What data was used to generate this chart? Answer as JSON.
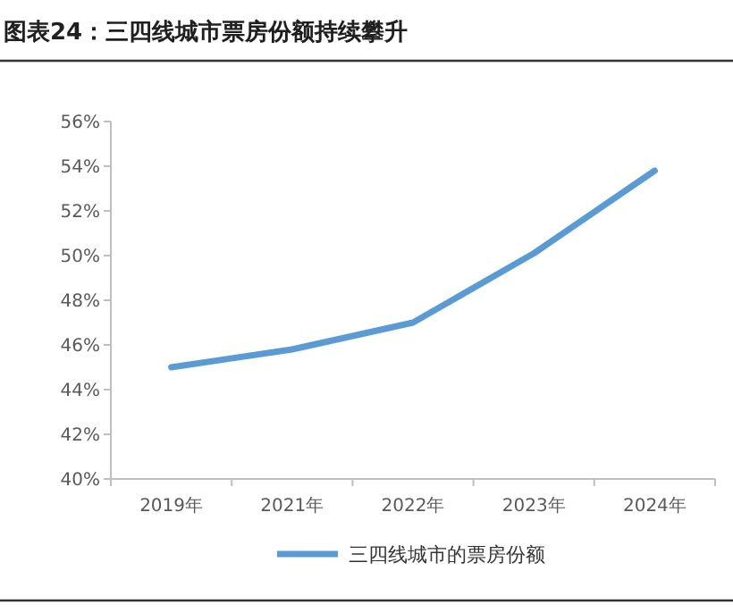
{
  "chart_data": {
    "type": "line",
    "title": "图表24：三四线城市票房份额持续攀升",
    "categories": [
      "2019年",
      "2021年",
      "2022年",
      "2023年",
      "2024年"
    ],
    "series": [
      {
        "name": "三四线城市的票房份额",
        "color": "#5b9bd5",
        "values": [
          45.0,
          45.8,
          47.0,
          50.1,
          53.8
        ]
      }
    ],
    "ylim": [
      40,
      56
    ],
    "yticks": [
      {
        "value": 40,
        "label": "40%"
      },
      {
        "value": 42,
        "label": "42%"
      },
      {
        "value": 44,
        "label": "44%"
      },
      {
        "value": 46,
        "label": "46%"
      },
      {
        "value": 48,
        "label": "48%"
      },
      {
        "value": 50,
        "label": "50%"
      },
      {
        "value": 52,
        "label": "52%"
      },
      {
        "value": 54,
        "label": "54%"
      },
      {
        "value": 56,
        "label": "56%"
      }
    ],
    "legend": "bottom",
    "grid": false
  }
}
